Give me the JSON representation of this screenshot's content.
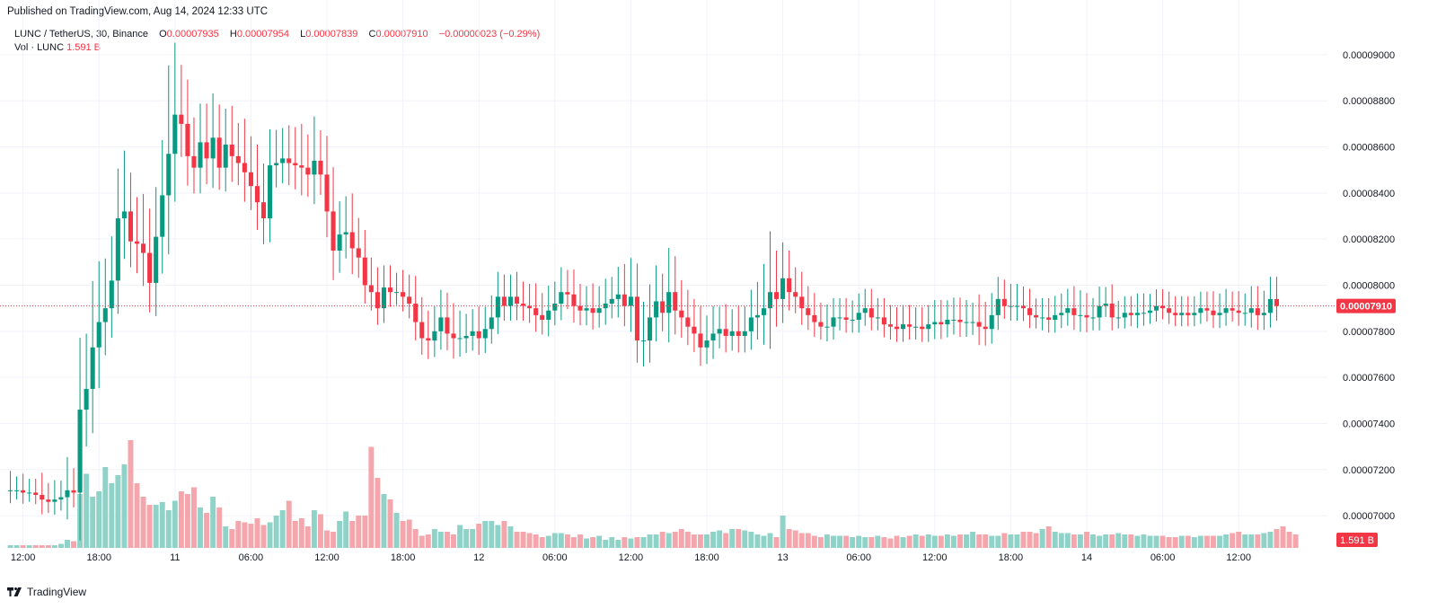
{
  "published": "Published on TradingView.com, Aug 14, 2024 12:33 UTC",
  "footer": {
    "brand": "TradingView",
    "logo_icon": "tradingview-logo-icon"
  },
  "legend": {
    "symbol": "LUNC / TetherUS, 30, Binance",
    "o_label": "O",
    "o_value": "0.00007935",
    "h_label": "H",
    "h_value": "0.00007954",
    "l_label": "L",
    "l_value": "0.00007839",
    "c_label": "C",
    "c_value": "0.00007910",
    "change": "−0.00000023 (−0.29%)",
    "vol_label": "Vol · LUNC",
    "vol_value": "1.591 B"
  },
  "colors": {
    "up": "#089981",
    "down": "#f23645",
    "vol_up": "#8fd3c8",
    "vol_down": "#f5a6ac",
    "grid": "#f0f3fa",
    "axis_text": "#131722",
    "price_line": "#f23645"
  },
  "chart_data": {
    "type": "candlestick",
    "interval": "30m",
    "ylim": [
      6.86e-05,
      9.14e-05
    ],
    "y_ticks": [
      "0.00009000",
      "0.00008800",
      "0.00008600",
      "0.00008400",
      "0.00008200",
      "0.00008000",
      "0.00007800",
      "0.00007600",
      "0.00007400",
      "0.00007200",
      "0.00007000"
    ],
    "x_ticks": [
      {
        "label": "12:00",
        "bar": 2
      },
      {
        "label": "18:00",
        "bar": 14
      },
      {
        "label": "11",
        "bar": 26
      },
      {
        "label": "06:00",
        "bar": 38
      },
      {
        "label": "12:00",
        "bar": 50
      },
      {
        "label": "18:00",
        "bar": 62
      },
      {
        "label": "12",
        "bar": 74
      },
      {
        "label": "06:00",
        "bar": 86
      },
      {
        "label": "12:00",
        "bar": 98
      },
      {
        "label": "18:00",
        "bar": 110
      },
      {
        "label": "13",
        "bar": 122
      },
      {
        "label": "06:00",
        "bar": 134
      },
      {
        "label": "12:00",
        "bar": 146
      },
      {
        "label": "18:00",
        "bar": 158
      },
      {
        "label": "14",
        "bar": 170
      },
      {
        "label": "06:00",
        "bar": 182
      },
      {
        "label": "12:00",
        "bar": 194
      }
    ],
    "last_price": "0.00007910",
    "last_price_value": 7.91e-05,
    "last_volume_label": "1.591 B",
    "closes": [
      7.11e-05,
      7.11e-05,
      7.1e-05,
      7.1e-05,
      7.09e-05,
      7.07e-05,
      7.06e-05,
      7.07e-05,
      7.08e-05,
      7.11e-05,
      7.1e-05,
      7.46e-05,
      7.55e-05,
      7.73e-05,
      7.84e-05,
      7.9e-05,
      8.02e-05,
      8.29e-05,
      8.32e-05,
      8.19e-05,
      8.18e-05,
      8.14e-05,
      8.01e-05,
      8.21e-05,
      8.39e-05,
      8.57e-05,
      8.74e-05,
      8.7e-05,
      8.56e-05,
      8.51e-05,
      8.62e-05,
      8.55e-05,
      8.64e-05,
      8.51e-05,
      8.61e-05,
      8.56e-05,
      8.53e-05,
      8.49e-05,
      8.43e-05,
      8.36e-05,
      8.29e-05,
      8.52e-05,
      8.53e-05,
      8.55e-05,
      8.53e-05,
      8.52e-05,
      8.51e-05,
      8.48e-05,
      8.54e-05,
      8.48e-05,
      8.32e-05,
      8.15e-05,
      8.22e-05,
      8.23e-05,
      8.16e-05,
      8.12e-05,
      8e-05,
      7.97e-05,
      7.9e-05,
      7.99e-05,
      7.97e-05,
      7.97e-05,
      7.95e-05,
      7.92e-05,
      7.84e-05,
      7.77e-05,
      7.76e-05,
      7.8e-05,
      7.86e-05,
      7.79e-05,
      7.77e-05,
      7.77e-05,
      7.78e-05,
      7.8e-05,
      7.77e-05,
      7.81e-05,
      7.86e-05,
      7.95e-05,
      7.91e-05,
      7.95e-05,
      7.92e-05,
      7.91e-05,
      7.9e-05,
      7.87e-05,
      7.85e-05,
      7.89e-05,
      7.92e-05,
      7.97e-05,
      7.96e-05,
      7.91e-05,
      7.89e-05,
      7.9e-05,
      7.88e-05,
      7.9e-05,
      7.92e-05,
      7.94e-05,
      7.96e-05,
      7.91e-05,
      7.95e-05,
      7.76e-05,
      7.76e-05,
      7.86e-05,
      7.93e-05,
      7.88e-05,
      7.97e-05,
      7.89e-05,
      7.86e-05,
      7.82e-05,
      7.79e-05,
      7.73e-05,
      7.76e-05,
      7.79e-05,
      7.81e-05,
      7.78e-05,
      7.8e-05,
      7.78e-05,
      7.8e-05,
      7.86e-05,
      7.87e-05,
      7.9e-05,
      7.97e-05,
      7.94e-05,
      8.03e-05,
      7.97e-05,
      7.95e-05,
      7.9e-05,
      7.87e-05,
      7.84e-05,
      7.82e-05,
      7.82e-05,
      7.86e-05,
      7.86e-05,
      7.85e-05,
      7.85e-05,
      7.88e-05,
      7.9e-05,
      7.86e-05,
      7.86e-05,
      7.83e-05,
      7.82e-05,
      7.81e-05,
      7.83e-05,
      7.82e-05,
      7.82e-05,
      7.81e-05,
      7.83e-05,
      7.84e-05,
      7.83e-05,
      7.85e-05,
      7.85e-05,
      7.84e-05,
      7.84e-05,
      7.84e-05,
      7.82e-05,
      7.81e-05,
      7.87e-05,
      7.94e-05,
      7.91e-05,
      7.91e-05,
      7.91e-05,
      7.9e-05,
      7.87e-05,
      7.86e-05,
      7.86e-05,
      7.85e-05,
      7.87e-05,
      7.88e-05,
      7.9e-05,
      7.87e-05,
      7.87e-05,
      7.86e-05,
      7.86e-05,
      7.91e-05,
      7.92e-05,
      7.86e-05,
      7.86e-05,
      7.88e-05,
      7.87e-05,
      7.88e-05,
      7.88e-05,
      7.89e-05,
      7.91e-05,
      7.9e-05,
      7.88e-05,
      7.87e-05,
      7.88e-05,
      7.87e-05,
      7.88e-05,
      7.9e-05,
      7.89e-05,
      7.87e-05,
      7.88e-05,
      7.9e-05,
      7.89e-05,
      7.88e-05,
      7.88e-05,
      7.9e-05,
      7.87e-05,
      7.88e-05,
      7.94e-05,
      7.91e-05
    ],
    "wicks": [
      0.7,
      0.5,
      0.6,
      0.5,
      0.5,
      0.8,
      0.6,
      0.7,
      0.6,
      1.2,
      0.8,
      2.6,
      2.0,
      2.4,
      2.2,
      1.8,
      1.6,
      1.8,
      2.2,
      1.4,
      1.6,
      1.8,
      1.6,
      1.8,
      2.0,
      3.2,
      2.6,
      1.8,
      1.6,
      1.4,
      1.4,
      1.4,
      1.6,
      1.2,
      1.3,
      1.4,
      1.2,
      1.6,
      1.3,
      1.5,
      1.4,
      1.3,
      1.2,
      1.1,
      1.2,
      1.3,
      1.5,
      1.2,
      1.6,
      1.1,
      1.4,
      1.6,
      1.2,
      1.3,
      1.4,
      1.1,
      1.0,
      1.0,
      0.9,
      0.8,
      0.8,
      0.7,
      0.8,
      0.8,
      1.0,
      0.9,
      1.0,
      0.9,
      1.0,
      0.9,
      1.1,
      1.0,
      0.8,
      0.8,
      0.9,
      0.8,
      0.8,
      0.9,
      0.8,
      0.8,
      0.9,
      0.8,
      0.8,
      0.9,
      0.8,
      0.9,
      0.8,
      0.9,
      0.8,
      0.9,
      0.8,
      0.8,
      0.9,
      0.8,
      0.9,
      0.8,
      1.0,
      1.1,
      1.4,
      1.2,
      1.4,
      1.2,
      1.3,
      1.0,
      1.6,
      1.3,
      1.1,
      1.0,
      1.0,
      1.0,
      0.9,
      1.0,
      0.8,
      0.9,
      0.8,
      0.9,
      0.9,
      1.0,
      1.2,
      1.6,
      2.2,
      1.5,
      1.3,
      1.0,
      0.9,
      0.9,
      0.8,
      0.8,
      0.7,
      0.8,
      0.7,
      0.7,
      0.7,
      0.7,
      0.7,
      0.7,
      0.7,
      0.7,
      0.7,
      0.7,
      0.7,
      0.7,
      0.7,
      0.7,
      0.7,
      0.7,
      0.8,
      0.8,
      0.7,
      0.8,
      0.8,
      0.8,
      0.7,
      1.0,
      0.9,
      0.8,
      0.8,
      0.7,
      0.8,
      0.8,
      0.7,
      0.7,
      0.6,
      0.7,
      0.7,
      0.7,
      0.7,
      0.7,
      0.8,
      0.9,
      0.8,
      0.7,
      0.7,
      0.6,
      0.7,
      0.6,
      0.6,
      0.6,
      0.7,
      0.7,
      0.6,
      0.6,
      0.6,
      0.6,
      0.6,
      0.6,
      0.6,
      0.6,
      0.6,
      0.6,
      0.7,
      0.7,
      0.7,
      0.6,
      0.7,
      0.7,
      0.8,
      0.8
    ],
    "volumes": [
      2,
      2,
      2,
      2,
      2,
      2,
      2,
      2,
      3,
      6,
      5,
      40,
      55,
      38,
      42,
      60,
      48,
      54,
      62,
      80,
      48,
      38,
      32,
      32,
      34,
      28,
      35,
      42,
      40,
      45,
      30,
      26,
      38,
      30,
      16,
      14,
      20,
      19,
      18,
      22,
      17,
      19,
      24,
      28,
      35,
      20,
      22,
      16,
      28,
      25,
      13,
      12,
      20,
      27,
      20,
      24,
      24,
      75,
      52,
      40,
      36,
      26,
      20,
      21,
      14,
      9,
      10,
      14,
      12,
      12,
      10,
      17,
      14,
      14,
      18,
      20,
      20,
      17,
      20,
      16,
      12,
      12,
      11,
      10,
      8,
      9,
      11,
      11,
      10,
      8,
      10,
      7,
      8,
      9,
      6,
      8,
      6,
      8,
      7,
      8,
      8,
      10,
      10,
      12,
      11,
      12,
      14,
      12,
      10,
      10,
      10,
      12,
      13,
      11,
      14,
      14,
      13,
      12,
      10,
      9,
      11,
      8,
      24,
      14,
      13,
      11,
      11,
      9,
      8,
      10,
      9,
      9,
      9,
      8,
      9,
      8,
      8,
      9,
      8,
      7,
      9,
      8,
      9,
      10,
      9,
      10,
      9,
      9,
      10,
      9,
      10,
      10,
      12,
      10,
      10,
      9,
      9,
      11,
      10,
      10,
      12,
      12,
      11,
      14,
      16,
      12,
      11,
      11,
      10,
      10,
      12,
      10,
      9,
      10,
      10,
      11,
      10,
      10,
      9,
      10,
      9,
      9,
      9,
      8,
      8,
      9,
      9,
      8,
      9,
      9,
      9,
      9,
      10,
      11,
      12,
      10,
      10,
      10,
      11,
      12,
      14,
      16,
      12,
      10
    ]
  }
}
